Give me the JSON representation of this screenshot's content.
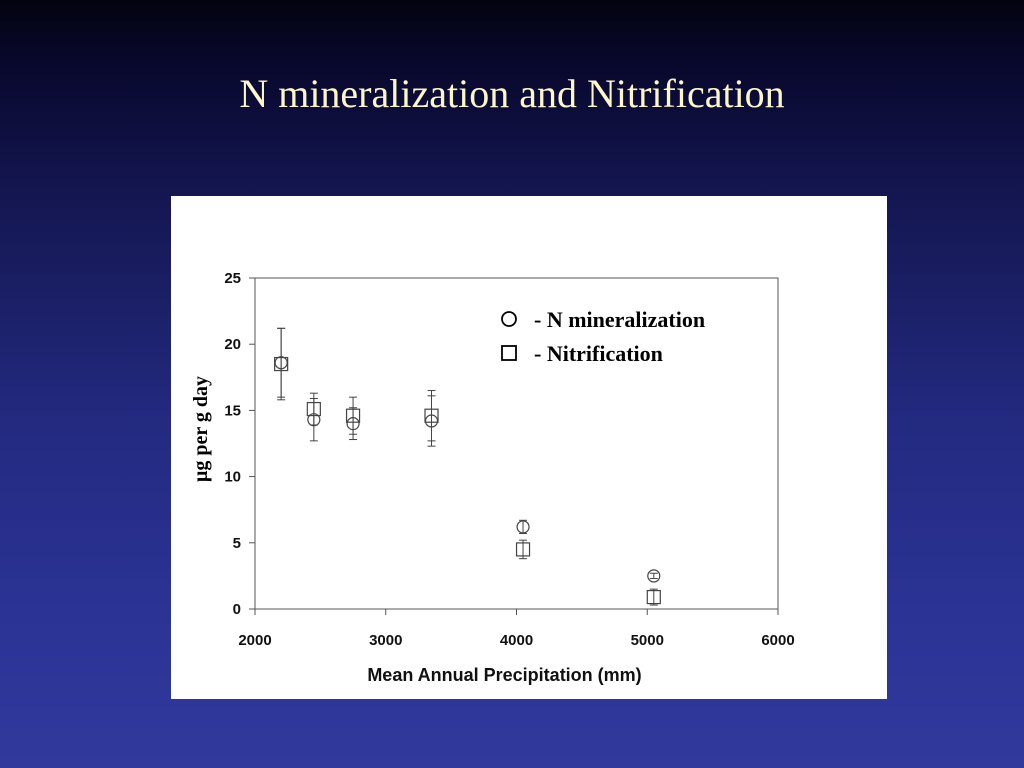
{
  "slide": {
    "title": "N mineralization and Nitrification"
  },
  "chart_data": {
    "type": "scatter",
    "xlabel": "Mean Annual Precipitation (mm)",
    "ylabel": "μg per g day",
    "xlim": [
      2000,
      6000
    ],
    "ylim": [
      0,
      25
    ],
    "xticks": [
      2000,
      3000,
      4000,
      5000,
      6000
    ],
    "yticks": [
      0,
      5,
      10,
      15,
      20,
      25
    ],
    "grid": false,
    "legend_position": "top-right",
    "series": [
      {
        "name": "- N mineralization",
        "marker": "circle",
        "points": [
          {
            "x": 2200,
            "y": 18.6,
            "err": 2.6
          },
          {
            "x": 2450,
            "y": 14.3,
            "err": 1.6
          },
          {
            "x": 2750,
            "y": 14.0,
            "err": 1.2
          },
          {
            "x": 3350,
            "y": 14.2,
            "err": 1.9
          },
          {
            "x": 4050,
            "y": 6.2,
            "err": 0.5
          },
          {
            "x": 5050,
            "y": 2.5,
            "err": 0.2
          }
        ]
      },
      {
        "name": "- Nitrification",
        "marker": "square",
        "points": [
          {
            "x": 2200,
            "y": 18.5,
            "err": 2.7
          },
          {
            "x": 2450,
            "y": 15.1,
            "err": 1.2
          },
          {
            "x": 2750,
            "y": 14.6,
            "err": 1.4
          },
          {
            "x": 3350,
            "y": 14.6,
            "err": 1.9
          },
          {
            "x": 4050,
            "y": 4.5,
            "err": 0.7
          },
          {
            "x": 5050,
            "y": 0.9,
            "err": 0.6
          }
        ]
      }
    ]
  }
}
